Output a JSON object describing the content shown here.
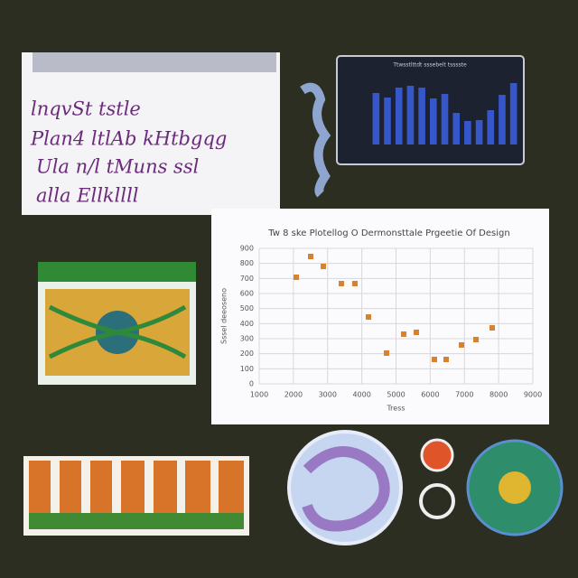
{
  "chart_data": [
    {
      "type": "scatter",
      "title": "Tw 8 ske Plotellog O Dermonsttale Prgeetie Of Design",
      "x_label": "Tress",
      "y_label": "Sssel deeoseno",
      "x": [
        2083,
        2505,
        2875,
        3403,
        3799,
        4195,
        4723,
        5224,
        5594,
        6122,
        6465,
        6914,
        7337,
        7812
      ],
      "values": [
        708,
        846,
        780,
        666,
        666,
        444,
        204,
        330,
        342,
        162,
        162,
        258,
        294,
        372
      ],
      "color": "#d9822b",
      "xlim": [
        1000,
        9000
      ],
      "xticks": [
        1000,
        2000,
        3000,
        4000,
        5000,
        6000,
        7000,
        8000,
        9000
      ],
      "ylim": [
        0,
        900
      ],
      "yticks": [
        0,
        100,
        200,
        300,
        400,
        500,
        600,
        700,
        800,
        900
      ],
      "grid": true
    },
    {
      "type": "bar",
      "title": "Ttwsstlttdt sssebelt tsssste",
      "categories": [
        null,
        null,
        null,
        null,
        null,
        null,
        null,
        null,
        null,
        null,
        null,
        null,
        null
      ],
      "values": [
        57,
        52,
        63,
        65,
        63,
        51,
        56,
        35,
        26,
        27,
        38,
        55,
        68
      ],
      "color": "#3557c9",
      "ylim": [
        0,
        85
      ]
    }
  ],
  "whiteboard": {
    "lines": [
      "lnqvSt tstle",
      "Plan4 ltlAb kHtbgqg",
      "Ula n/l tMuns ssl",
      "alla Ellkllll"
    ]
  }
}
